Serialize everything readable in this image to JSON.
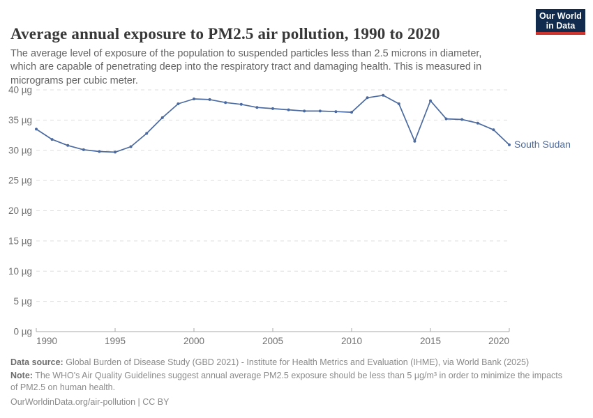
{
  "header": {
    "title": "Average annual exposure to PM2.5 air pollution, 1990 to 2020",
    "subtitle": "The average level of exposure of the population to suspended particles less than 2.5 microns in diameter, which are capable of penetrating deep into the respiratory tract and damaging health. This is measured in micrograms per cubic meter.",
    "logo": {
      "line1": "Our World",
      "line2": "in Data",
      "bg_color": "#102b4d",
      "accent_color": "#d0342c"
    }
  },
  "chart_data": {
    "type": "line",
    "title": "Average annual exposure to PM2.5 air pollution, 1990 to 2020",
    "xlabel": "",
    "ylabel": "",
    "xlim": [
      1990,
      2020
    ],
    "ylim": [
      0,
      40
    ],
    "grid": "horizontal-dashed",
    "legend_position": "end-of-line-label",
    "xticks": {
      "values": [
        1990,
        1995,
        2000,
        2005,
        2010,
        2015,
        2020
      ],
      "labels": [
        "1990",
        "1995",
        "2000",
        "2005",
        "2010",
        "2015",
        "2020"
      ]
    },
    "yticks": {
      "values": [
        0,
        5,
        10,
        15,
        20,
        25,
        30,
        35,
        40
      ],
      "labels": [
        "0 µg",
        "5 µg",
        "10 µg",
        "15 µg",
        "20 µg",
        "25 µg",
        "30 µg",
        "35 µg",
        "40 µg"
      ]
    },
    "x": [
      1990,
      1991,
      1992,
      1993,
      1994,
      1995,
      1996,
      1997,
      1998,
      1999,
      2000,
      2001,
      2002,
      2003,
      2004,
      2005,
      2006,
      2007,
      2008,
      2009,
      2010,
      2011,
      2012,
      2013,
      2014,
      2015,
      2016,
      2017,
      2018,
      2019,
      2020
    ],
    "series": [
      {
        "name": "South Sudan",
        "color": "#4b6a9f",
        "values": [
          33.5,
          31.8,
          30.8,
          30.1,
          29.8,
          29.7,
          30.6,
          32.8,
          35.4,
          37.7,
          38.5,
          38.4,
          37.9,
          37.6,
          37.1,
          36.9,
          36.7,
          36.5,
          36.5,
          36.4,
          36.3,
          38.7,
          39.1,
          37.7,
          31.5,
          38.2,
          35.2,
          35.1,
          34.5,
          33.4,
          30.9
        ]
      }
    ],
    "unit": "µg",
    "colors": {
      "gridline": "#dedede",
      "axis": "#a9a9a9",
      "tick_text": "#6f6f6f"
    }
  },
  "footer": {
    "datasource_label": "Data source:",
    "datasource_text": "Global Burden of Disease Study (GBD 2021) - Institute for Health Metrics and Evaluation (IHME), via World Bank (2025)",
    "note_label": "Note:",
    "note_text": "The WHO's Air Quality Guidelines suggest annual average PM2.5 exposure should be less than 5 µg/m³ in order to minimize the impacts of PM2.5 on human health.",
    "url": "OurWorldinData.org/air-pollution | CC BY"
  }
}
